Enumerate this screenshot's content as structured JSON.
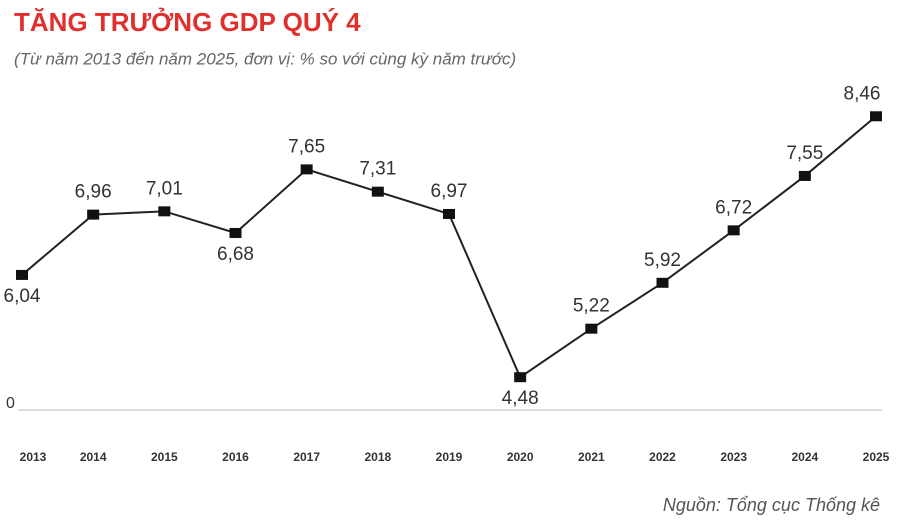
{
  "chart_data": {
    "type": "line",
    "title": "TĂNG TRƯỞNG GDP QUÝ 4",
    "subtitle": "(Từ năm 2013 đến năm 2025, đơn vị: % so với cùng kỳ năm trước)",
    "source": "Nguồn: Tổng cục Thống kê",
    "baseline_label": "0",
    "categories": [
      "2013",
      "2014",
      "2015",
      "2016",
      "2017",
      "2018",
      "2019",
      "2020",
      "2021",
      "2022",
      "2023",
      "2024",
      "2025"
    ],
    "series": [
      {
        "name": "GDP",
        "color": "#222222",
        "values": [
          6.04,
          6.96,
          7.01,
          6.68,
          7.65,
          7.31,
          6.97,
          4.48,
          5.22,
          5.92,
          6.72,
          7.55,
          8.46
        ],
        "value_labels": [
          "6,04",
          "6,96",
          "7,01",
          "6,68",
          "7,65",
          "7,31",
          "6,97",
          "4,48",
          "5,22",
          "5,92",
          "6,72",
          "7,55",
          "8,46"
        ]
      }
    ],
    "highlight_color": "#e0302d",
    "ylim": [
      4.01,
      8.8
    ]
  }
}
